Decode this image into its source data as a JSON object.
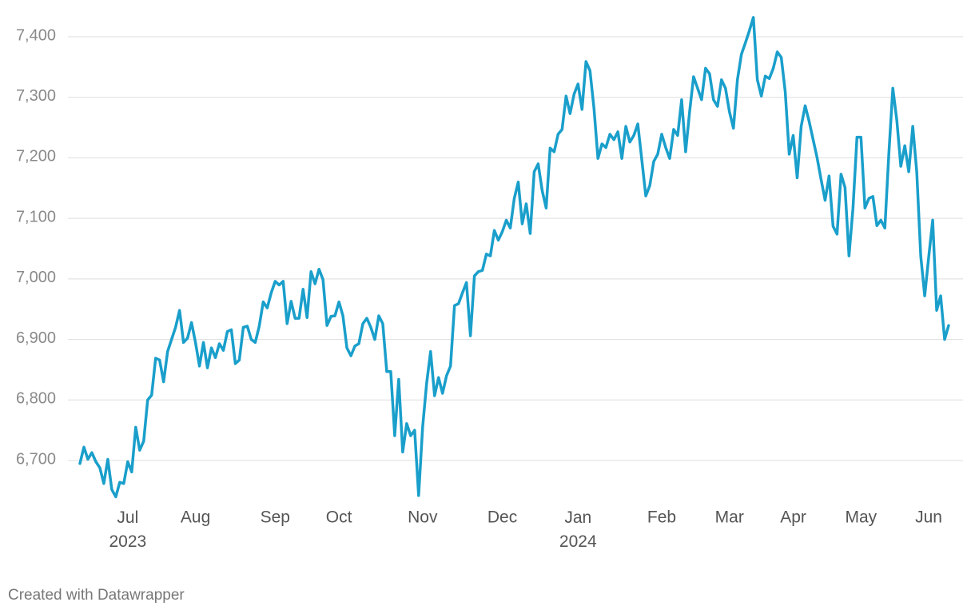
{
  "chart_data": {
    "type": "line",
    "categories": [
      null,
      null,
      null,
      null,
      null,
      null,
      null,
      null,
      null,
      null,
      null,
      null,
      "Jul\n2023",
      null,
      null,
      null,
      null,
      null,
      null,
      null,
      null,
      null,
      null,
      null,
      null,
      null,
      null,
      null,
      null,
      "Aug",
      null,
      null,
      null,
      null,
      null,
      null,
      null,
      null,
      null,
      null,
      null,
      null,
      null,
      null,
      null,
      null,
      null,
      null,
      null,
      "Sep",
      null,
      null,
      null,
      null,
      null,
      null,
      null,
      null,
      null,
      null,
      null,
      null,
      null,
      null,
      null,
      "Oct",
      null,
      null,
      null,
      null,
      null,
      null,
      null,
      null,
      null,
      null,
      null,
      null,
      null,
      null,
      null,
      null,
      null,
      null,
      null,
      null,
      "Nov",
      null,
      null,
      null,
      null,
      null,
      null,
      null,
      null,
      null,
      null,
      null,
      null,
      null,
      null,
      null,
      null,
      null,
      null,
      null,
      "Dec",
      null,
      null,
      null,
      null,
      null,
      null,
      null,
      null,
      null,
      null,
      null,
      null,
      null,
      null,
      null,
      null,
      null,
      null,
      "Jan\n2024",
      null,
      null,
      null,
      null,
      null,
      null,
      null,
      null,
      null,
      null,
      null,
      null,
      null,
      null,
      null,
      null,
      null,
      null,
      null,
      null,
      "Feb",
      null,
      null,
      null,
      null,
      null,
      null,
      null,
      null,
      null,
      null,
      null,
      null,
      null,
      null,
      null,
      null,
      "Mar",
      null,
      null,
      null,
      null,
      null,
      null,
      null,
      null,
      null,
      null,
      null,
      null,
      null,
      null,
      null,
      "Apr",
      null,
      null,
      null,
      null,
      null,
      null,
      null,
      null,
      null,
      null,
      null,
      null,
      null,
      null,
      null,
      null,
      "May",
      null,
      null,
      null,
      null,
      null,
      null,
      null,
      null,
      null,
      null,
      null,
      null,
      null,
      null,
      null,
      null,
      "Jun",
      null,
      null,
      null,
      null,
      null
    ],
    "values": [
      6695,
      6722,
      6702,
      6713,
      6698,
      6688,
      6662,
      6702,
      6652,
      6640,
      6664,
      6662,
      6698,
      6681,
      6755,
      6717,
      6732,
      6800,
      6808,
      6869,
      6866,
      6830,
      6880,
      6900,
      6920,
      6948,
      6895,
      6902,
      6928,
      6895,
      6856,
      6895,
      6853,
      6886,
      6870,
      6893,
      6882,
      6913,
      6916,
      6860,
      6866,
      6920,
      6922,
      6900,
      6895,
      6922,
      6962,
      6952,
      6977,
      6996,
      6990,
      6996,
      6926,
      6963,
      6935,
      6935,
      6983,
      6936,
      7012,
      6992,
      7016,
      6999,
      6923,
      6938,
      6939,
      6962,
      6939,
      6886,
      6873,
      6889,
      6893,
      6926,
      6935,
      6920,
      6900,
      6939,
      6926,
      6847,
      6847,
      6741,
      6834,
      6714,
      6761,
      6741,
      6750,
      6642,
      6755,
      6827,
      6880,
      6807,
      6837,
      6811,
      6840,
      6856,
      6956,
      6959,
      6977,
      6994,
      6906,
      7005,
      7012,
      7014,
      7041,
      7038,
      7080,
      7064,
      7078,
      7097,
      7084,
      7133,
      7160,
      7091,
      7124,
      7075,
      7177,
      7190,
      7146,
      7117,
      7216,
      7210,
      7239,
      7247,
      7302,
      7273,
      7305,
      7322,
      7280,
      7359,
      7344,
      7282,
      7199,
      7223,
      7217,
      7239,
      7230,
      7243,
      7199,
      7252,
      7226,
      7237,
      7256,
      7197,
      7137,
      7154,
      7194,
      7206,
      7239,
      7217,
      7199,
      7247,
      7237,
      7296,
      7210,
      7276,
      7334,
      7315,
      7296,
      7348,
      7339,
      7296,
      7285,
      7329,
      7315,
      7276,
      7249,
      7329,
      7371,
      7390,
      7410,
      7432,
      7329,
      7302,
      7335,
      7331,
      7348,
      7375,
      7366,
      7309,
      7206,
      7237,
      7167,
      7252,
      7286,
      7260,
      7230,
      7200,
      7164,
      7130,
      7170,
      7087,
      7074,
      7173,
      7151,
      7038,
      7117,
      7234,
      7234,
      7117,
      7133,
      7136,
      7088,
      7097,
      7084,
      7207,
      7315,
      7262,
      7186,
      7220,
      7177,
      7252,
      7177,
      7038,
      6972,
      7036,
      7097,
      6948,
      6972,
      6900,
      6923
    ],
    "color": "#1a9fcb",
    "ylim": [
      6630,
      7440
    ],
    "yticks": [
      {
        "value": 6700,
        "label": "6,700"
      },
      {
        "value": 6800,
        "label": "6,800"
      },
      {
        "value": 6900,
        "label": "6,900"
      },
      {
        "value": 7000,
        "label": "7,000"
      },
      {
        "value": 7100,
        "label": "7,100"
      },
      {
        "value": 7200,
        "label": "7,200"
      },
      {
        "value": 7300,
        "label": "7,300"
      },
      {
        "value": 7400,
        "label": "7,400"
      }
    ],
    "grid": true,
    "footer": "Created with Datawrapper"
  }
}
